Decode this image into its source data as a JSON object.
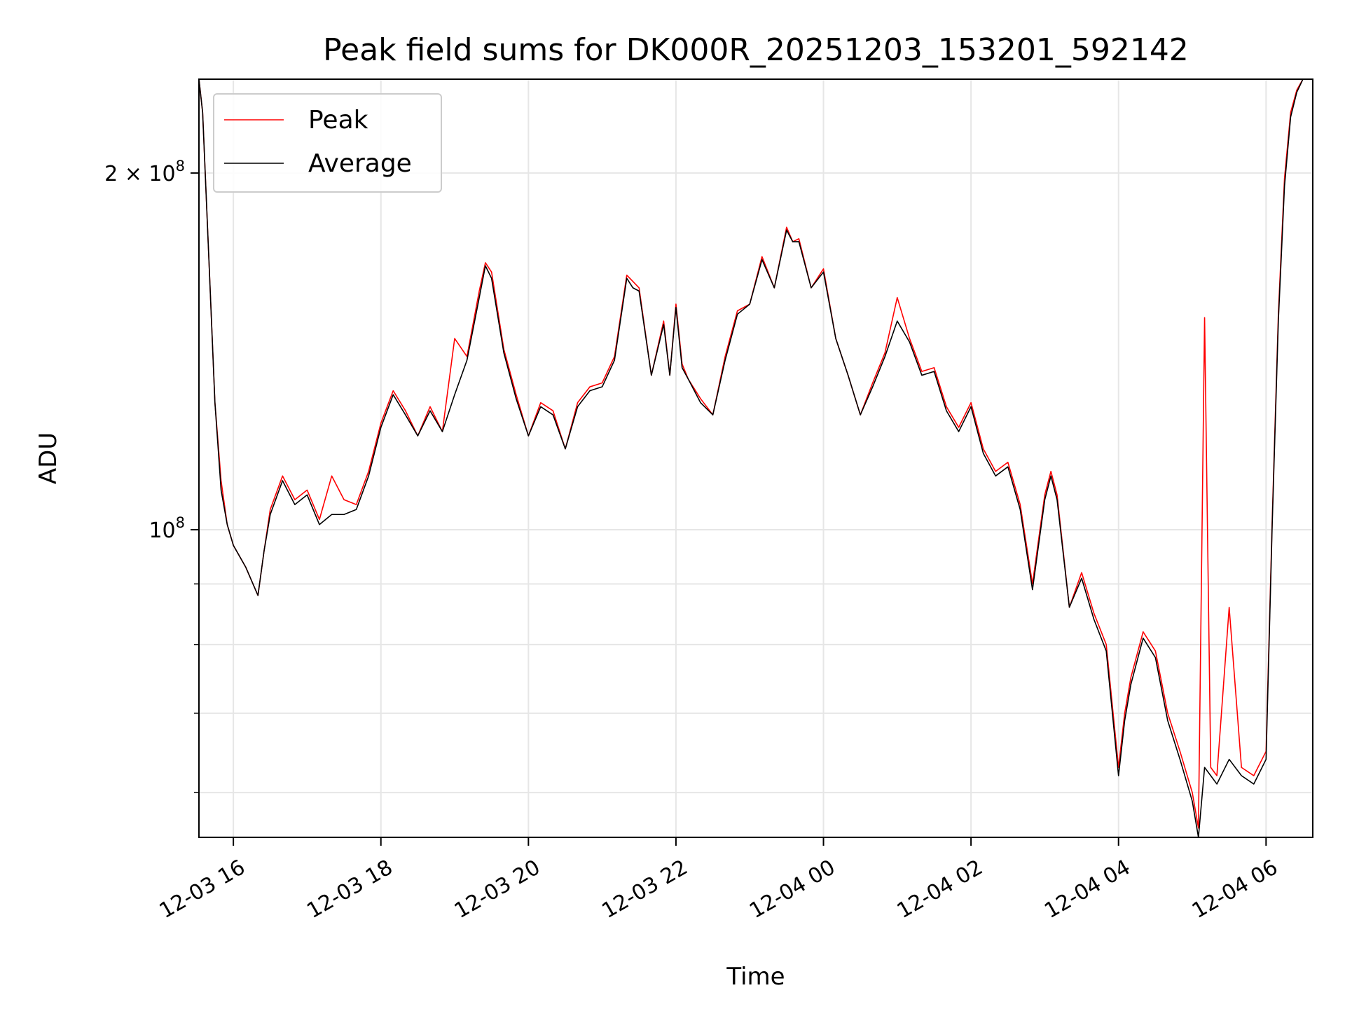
{
  "chart_data": {
    "type": "line",
    "title": "Peak field sums for DK000R_20251203_153201_592142",
    "xlabel": "Time",
    "ylabel": "ADU",
    "yscale": "log",
    "grid": true,
    "legend_placement": "upper-left",
    "xlim": [
      "2025-12-03 15:32",
      "2025-12-04 06:38"
    ],
    "ylim": [
      55000000,
      240000000
    ],
    "x_ticks": [
      {
        "value": "2025-12-03 16:00",
        "label": "12-03 16"
      },
      {
        "value": "2025-12-03 18:00",
        "label": "12-03 18"
      },
      {
        "value": "2025-12-03 20:00",
        "label": "12-03 20"
      },
      {
        "value": "2025-12-03 22:00",
        "label": "12-03 22"
      },
      {
        "value": "2025-12-04 00:00",
        "label": "12-04 00"
      },
      {
        "value": "2025-12-04 02:00",
        "label": "12-04 02"
      },
      {
        "value": "2025-12-04 04:00",
        "label": "12-04 04"
      },
      {
        "value": "2025-12-04 06:00",
        "label": "12-04 06"
      }
    ],
    "y_major_ticks": [
      {
        "value": 100000000,
        "base": "10",
        "exp": "8",
        "coef": ""
      },
      {
        "value": 200000000,
        "base": "10",
        "exp": "8",
        "coef": "2 × "
      }
    ],
    "y_minor_ticks": [
      60000000,
      70000000,
      80000000,
      90000000
    ],
    "x": [
      "2025-12-03 15:32",
      "2025-12-03 15:35",
      "2025-12-03 15:40",
      "2025-12-03 15:45",
      "2025-12-03 15:50",
      "2025-12-03 15:55",
      "2025-12-03 16:00",
      "2025-12-03 16:10",
      "2025-12-03 16:20",
      "2025-12-03 16:25",
      "2025-12-03 16:30",
      "2025-12-03 16:40",
      "2025-12-03 16:50",
      "2025-12-03 17:00",
      "2025-12-03 17:10",
      "2025-12-03 17:20",
      "2025-12-03 17:30",
      "2025-12-03 17:40",
      "2025-12-03 17:50",
      "2025-12-03 18:00",
      "2025-12-03 18:10",
      "2025-12-03 18:20",
      "2025-12-03 18:30",
      "2025-12-03 18:40",
      "2025-12-03 18:50",
      "2025-12-03 19:00",
      "2025-12-03 19:10",
      "2025-12-03 19:20",
      "2025-12-03 19:25",
      "2025-12-03 19:30",
      "2025-12-03 19:40",
      "2025-12-03 19:50",
      "2025-12-03 20:00",
      "2025-12-03 20:10",
      "2025-12-03 20:20",
      "2025-12-03 20:30",
      "2025-12-03 20:40",
      "2025-12-03 20:50",
      "2025-12-03 21:00",
      "2025-12-03 21:10",
      "2025-12-03 21:20",
      "2025-12-03 21:25",
      "2025-12-03 21:30",
      "2025-12-03 21:40",
      "2025-12-03 21:50",
      "2025-12-03 21:55",
      "2025-12-03 22:00",
      "2025-12-03 22:05",
      "2025-12-03 22:10",
      "2025-12-03 22:20",
      "2025-12-03 22:30",
      "2025-12-03 22:40",
      "2025-12-03 22:50",
      "2025-12-03 23:00",
      "2025-12-03 23:10",
      "2025-12-03 23:20",
      "2025-12-03 23:30",
      "2025-12-03 23:35",
      "2025-12-03 23:40",
      "2025-12-03 23:50",
      "2025-12-04 00:00",
      "2025-12-04 00:10",
      "2025-12-04 00:20",
      "2025-12-04 00:30",
      "2025-12-04 00:40",
      "2025-12-04 00:50",
      "2025-12-04 01:00",
      "2025-12-04 01:10",
      "2025-12-04 01:20",
      "2025-12-04 01:30",
      "2025-12-04 01:40",
      "2025-12-04 01:50",
      "2025-12-04 02:00",
      "2025-12-04 02:10",
      "2025-12-04 02:20",
      "2025-12-04 02:30",
      "2025-12-04 02:40",
      "2025-12-04 02:50",
      "2025-12-04 03:00",
      "2025-12-04 03:05",
      "2025-12-04 03:10",
      "2025-12-04 03:20",
      "2025-12-04 03:30",
      "2025-12-04 03:40",
      "2025-12-04 03:50",
      "2025-12-04 04:00",
      "2025-12-04 04:05",
      "2025-12-04 04:10",
      "2025-12-04 04:20",
      "2025-12-04 04:30",
      "2025-12-04 04:40",
      "2025-12-04 04:50",
      "2025-12-04 05:00",
      "2025-12-04 05:05",
      "2025-12-04 05:10",
      "2025-12-04 05:15",
      "2025-12-04 05:20",
      "2025-12-04 05:30",
      "2025-12-04 05:40",
      "2025-12-04 05:50",
      "2025-12-04 06:00",
      "2025-12-04 06:05",
      "2025-12-04 06:10",
      "2025-12-04 06:15",
      "2025-12-04 06:20",
      "2025-12-04 06:25",
      "2025-12-04 06:30",
      "2025-12-04 06:38"
    ],
    "series": [
      {
        "name": "Peak",
        "color": "#ff0000",
        "values": [
          240000000,
          225000000,
          170000000,
          128000000,
          110000000,
          101000000,
          97000000,
          93000000,
          88000000,
          96000000,
          104000000,
          111000000,
          106000000,
          108000000,
          102000000,
          111000000,
          106000000,
          105000000,
          112000000,
          123000000,
          131000000,
          126000000,
          120000000,
          127000000,
          121000000,
          145000000,
          140000000,
          159000000,
          168000000,
          165000000,
          142000000,
          130000000,
          120000000,
          128000000,
          126000000,
          117000000,
          128000000,
          132000000,
          133000000,
          140000000,
          164000000,
          162000000,
          160000000,
          135000000,
          150000000,
          135000000,
          155000000,
          138000000,
          134000000,
          129000000,
          125000000,
          140000000,
          153000000,
          155000000,
          170000000,
          160000000,
          180000000,
          175000000,
          176000000,
          160000000,
          166000000,
          145000000,
          135000000,
          125000000,
          133000000,
          141000000,
          157000000,
          145000000,
          136000000,
          137000000,
          127000000,
          122000000,
          128000000,
          117000000,
          112000000,
          114000000,
          105000000,
          90000000,
          107000000,
          112000000,
          107000000,
          86000000,
          92000000,
          85000000,
          80000000,
          63000000,
          70000000,
          75000000,
          82000000,
          79000000,
          70000000,
          65000000,
          60000000,
          56000000,
          151000000,
          63000000,
          62000000,
          86000000,
          63000000,
          62000000,
          65000000,
          102000000,
          152000000,
          198000000,
          225000000,
          235000000,
          240000000,
          240000000
        ]
      },
      {
        "name": "Average",
        "color": "#000000",
        "values": [
          240000000,
          225000000,
          170000000,
          128000000,
          108000000,
          101000000,
          97000000,
          93000000,
          88000000,
          96000000,
          103000000,
          110000000,
          105000000,
          107000000,
          101000000,
          103000000,
          103000000,
          104000000,
          111000000,
          122000000,
          130000000,
          125000000,
          120000000,
          126000000,
          121000000,
          130000000,
          139000000,
          157000000,
          167000000,
          163000000,
          141000000,
          129000000,
          120000000,
          127000000,
          125000000,
          117000000,
          127000000,
          131000000,
          132000000,
          139000000,
          163000000,
          160000000,
          159000000,
          135000000,
          149000000,
          135000000,
          154000000,
          137000000,
          134000000,
          128000000,
          125000000,
          139000000,
          152000000,
          155000000,
          169000000,
          160000000,
          179000000,
          175000000,
          175000000,
          160000000,
          165000000,
          145000000,
          135000000,
          125000000,
          132000000,
          140000000,
          150000000,
          144000000,
          135000000,
          136000000,
          126000000,
          121000000,
          127000000,
          116000000,
          111000000,
          113000000,
          104000000,
          89000000,
          106000000,
          111000000,
          106000000,
          86000000,
          91000000,
          84000000,
          79000000,
          62000000,
          69000000,
          74000000,
          81000000,
          78000000,
          69000000,
          64000000,
          59000000,
          55000000,
          63000000,
          62000000,
          61000000,
          64000000,
          62000000,
          61000000,
          64000000,
          101000000,
          150000000,
          195000000,
          223000000,
          234000000,
          240000000,
          240000000
        ]
      }
    ]
  }
}
